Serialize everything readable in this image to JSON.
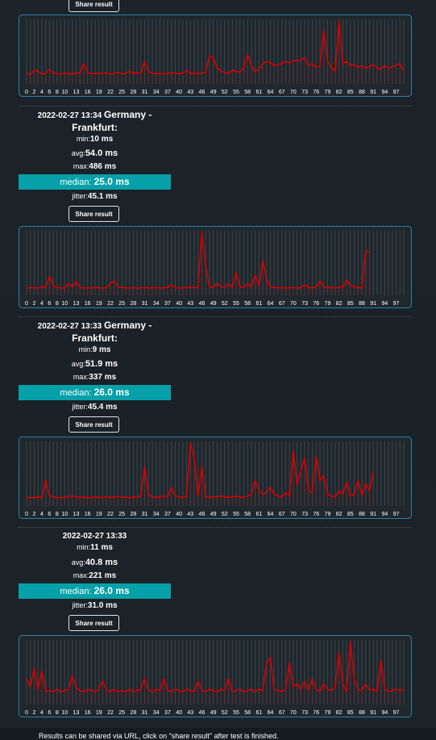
{
  "top_button": "Share result",
  "results": [
    {
      "date": "2022-02-27 13:34",
      "location": "Germany - Frankfurt:",
      "stats": [
        {
          "label": "min:",
          "value": "10 ms"
        },
        {
          "label": "avg:",
          "value": "54.0 ms"
        },
        {
          "label": "max:",
          "value": "486 ms"
        }
      ],
      "median": {
        "label": "median:",
        "value": "25.0 ms"
      },
      "jitter": {
        "label": "jitter:",
        "value": "45.1 ms"
      },
      "button": "Share result"
    },
    {
      "date": "2022-02-27 13:33",
      "location": "Germany - Frankfurt:",
      "stats": [
        {
          "label": "min:",
          "value": "9 ms"
        },
        {
          "label": "avg:",
          "value": "51.9 ms"
        },
        {
          "label": "max:",
          "value": "337 ms"
        }
      ],
      "median": {
        "label": "median:",
        "value": "26.0 ms"
      },
      "jitter": {
        "label": "jitter:",
        "value": "45.4 ms"
      },
      "button": "Share result"
    },
    {
      "date": "2022-02-27 13:33",
      "stats": [
        {
          "label": "min:",
          "value": "11 ms"
        },
        {
          "label": "avg:",
          "value": "40.8 ms"
        },
        {
          "label": "max:",
          "value": "221 ms"
        }
      ],
      "median": {
        "label": "median:",
        "value": "26.0 ms"
      },
      "jitter": {
        "label": "jitter:",
        "value": "31.0 ms"
      },
      "button": "Share result"
    }
  ],
  "chart_data": [
    {
      "type": "line",
      "color": "#d40000",
      "xlim": [
        0,
        99
      ],
      "xticks": [
        0,
        2,
        4,
        6,
        8,
        10,
        13,
        16,
        19,
        22,
        25,
        28,
        31,
        34,
        37,
        40,
        43,
        46,
        49,
        52,
        55,
        58,
        61,
        64,
        67,
        70,
        73,
        76,
        79,
        82,
        85,
        88,
        91,
        94,
        97
      ],
      "values": [
        30,
        25,
        45,
        40,
        28,
        30,
        50,
        30,
        28,
        25,
        30,
        28,
        25,
        35,
        30,
        80,
        35,
        28,
        30,
        30,
        28,
        32,
        25,
        30,
        35,
        28,
        30,
        40,
        30,
        35,
        28,
        90,
        40,
        30,
        28,
        30,
        25,
        30,
        35,
        30,
        28,
        30,
        45,
        30,
        28,
        30,
        30,
        35,
        120,
        110,
        60,
        40,
        35,
        30,
        45,
        40,
        35,
        60,
        125,
        70,
        40,
        50,
        80,
        90,
        85,
        70,
        75,
        80,
        90,
        85,
        95,
        95,
        100,
        110,
        70,
        80,
        60,
        70,
        250,
        90,
        60,
        40,
        300,
        80,
        90,
        70,
        75,
        60,
        70,
        55,
        65,
        75,
        60,
        50,
        70,
        55,
        65,
        70,
        80,
        40
      ]
    },
    {
      "type": "line",
      "color": "#d40000",
      "xlim": [
        0,
        99
      ],
      "xticks": [
        0,
        2,
        4,
        6,
        8,
        10,
        13,
        16,
        19,
        22,
        25,
        28,
        31,
        34,
        37,
        40,
        43,
        46,
        49,
        52,
        55,
        58,
        61,
        64,
        67,
        70,
        73,
        76,
        79,
        82,
        85,
        88,
        91,
        94,
        97
      ],
      "values": [
        20,
        25,
        22,
        20,
        30,
        25,
        120,
        40,
        25,
        22,
        20,
        60,
        30,
        75,
        25,
        20,
        22,
        20,
        25,
        22,
        20,
        25,
        60,
        80,
        30,
        25,
        22,
        20,
        25,
        20,
        22,
        25,
        20,
        22,
        25,
        20,
        22,
        25,
        50,
        25,
        20,
        22,
        25,
        30,
        22,
        25,
        486,
        200,
        30,
        25,
        60,
        30,
        25,
        55,
        25,
        150,
        30,
        25,
        60,
        30,
        130,
        40,
        250,
        100,
        30,
        25,
        22,
        25,
        20,
        22,
        25,
        20,
        22,
        50,
        25,
        22,
        25,
        80,
        30,
        22,
        25,
        22,
        25,
        30,
        90,
        40,
        30,
        25,
        20,
        330,
        320
      ]
    },
    {
      "type": "line",
      "color": "#d40000",
      "xlim": [
        0,
        99
      ],
      "xticks": [
        0,
        2,
        4,
        6,
        8,
        10,
        13,
        16,
        19,
        22,
        25,
        28,
        31,
        34,
        37,
        40,
        43,
        46,
        49,
        52,
        55,
        58,
        61,
        64,
        67,
        70,
        73,
        76,
        79,
        82,
        85,
        88,
        91,
        94,
        97
      ],
      "values": [
        25,
        20,
        22,
        25,
        20,
        120,
        30,
        25,
        22,
        20,
        22,
        25,
        30,
        25,
        22,
        25,
        20,
        22,
        25,
        20,
        22,
        25,
        20,
        25,
        30,
        22,
        25,
        20,
        22,
        25,
        30,
        200,
        40,
        25,
        22,
        25,
        30,
        25,
        80,
        30,
        25,
        22,
        30,
        337,
        250,
        30,
        200,
        25,
        22,
        25,
        25,
        30,
        25,
        22,
        25,
        30,
        25,
        22,
        30,
        40,
        120,
        60,
        40,
        50,
        80,
        40,
        30,
        25,
        50,
        30,
        290,
        100,
        180,
        250,
        60,
        50,
        260,
        120,
        150,
        40,
        30,
        25,
        60,
        40,
        110,
        30,
        40,
        120,
        35,
        100,
        60,
        170
      ]
    },
    {
      "type": "line",
      "color": "#d40000",
      "xlim": [
        0,
        99
      ],
      "xticks": [
        0,
        2,
        4,
        6,
        8,
        10,
        13,
        16,
        19,
        22,
        25,
        28,
        31,
        34,
        37,
        40,
        43,
        46,
        49,
        52,
        55,
        58,
        61,
        64,
        67,
        70,
        73,
        76,
        79,
        82,
        85,
        88,
        91,
        94,
        97
      ],
      "values": [
        80,
        50,
        120,
        40,
        110,
        30,
        35,
        30,
        40,
        30,
        35,
        40,
        90,
        45,
        35,
        30,
        40,
        35,
        30,
        40,
        70,
        35,
        30,
        40,
        30,
        35,
        30,
        40,
        30,
        35,
        40,
        80,
        35,
        30,
        40,
        35,
        80,
        35,
        30,
        40,
        35,
        30,
        40,
        35,
        30,
        70,
        35,
        30,
        40,
        35,
        30,
        40,
        35,
        80,
        30,
        35,
        40,
        30,
        35,
        40,
        30,
        40,
        35,
        140,
        160,
        40,
        35,
        30,
        40,
        140,
        50,
        60,
        40,
        70,
        35,
        80,
        40,
        30,
        60,
        40,
        35,
        50,
        180,
        60,
        30,
        221,
        80,
        40,
        35,
        60,
        35,
        40,
        30,
        150,
        40,
        30,
        35,
        40,
        35,
        40
      ]
    }
  ],
  "footer": "Results can be shared via URL, click on \"share result\" after test is finished."
}
